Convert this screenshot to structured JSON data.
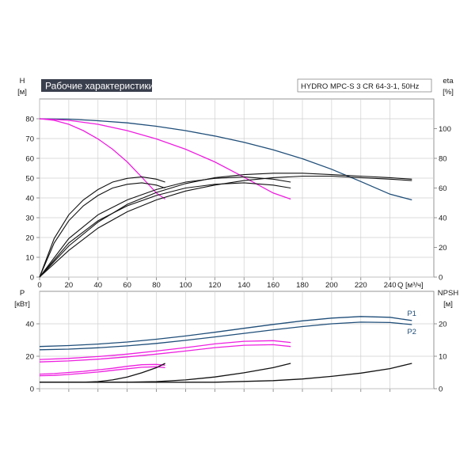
{
  "title_badge": "Рабочие характеристики",
  "model_label": "HYDRO MPC-S 3 CR 64-3-1, 50Hz",
  "colors": {
    "badge_bg": "#3a3f4d",
    "badge_text": "#ffffff",
    "grid": "#cfcfcf",
    "axis": "#7a7a7a",
    "head": "#1f4e79",
    "head_partial": "#ee1fe0",
    "eta": "#111111",
    "power": "#1f4e79",
    "power_partial": "#ee1fe0",
    "npsh": "#111111"
  },
  "chart_data": [
    {
      "type": "line",
      "panel": "top",
      "grid": true,
      "xlabel": "Q [м³/ч]",
      "xlim": [
        0,
        270
      ],
      "xticks": [
        0,
        20,
        40,
        60,
        80,
        100,
        120,
        140,
        160,
        180,
        200,
        220,
        240
      ],
      "xtick_labels": [
        "0",
        "20",
        "40",
        "60",
        "80",
        "100",
        "120",
        "140",
        "160",
        "180",
        "200",
        "220",
        "240"
      ],
      "left_axis": {
        "label_line1": "H",
        "label_line2": "[м]",
        "lim": [
          0,
          90
        ],
        "ticks": [
          0,
          10,
          20,
          30,
          40,
          50,
          60,
          70,
          80
        ],
        "tick_labels": [
          "0",
          "10",
          "20",
          "30",
          "40",
          "50",
          "60",
          "70",
          "80"
        ]
      },
      "right_axis": {
        "label_line1": "eta",
        "label_line2": "[%]",
        "lim": [
          0,
          120
        ],
        "ticks": [
          0,
          20,
          40,
          60,
          80,
          100
        ],
        "tick_labels": [
          "0",
          "20",
          "40",
          "60",
          "80",
          "100"
        ]
      },
      "series": [
        {
          "kind": "head",
          "axis": "left",
          "style": "main",
          "x": [
            0,
            20,
            40,
            60,
            80,
            100,
            120,
            140,
            160,
            180,
            200,
            220,
            240,
            255
          ],
          "y": [
            80,
            79.8,
            79,
            77.9,
            76.2,
            74,
            71.3,
            68.1,
            64.3,
            59.8,
            54.5,
            48.3,
            41.9,
            39
          ]
        },
        {
          "kind": "head",
          "axis": "left",
          "style": "partial",
          "x": [
            0,
            20,
            40,
            60,
            80,
            100,
            120,
            140,
            160,
            172
          ],
          "y": [
            80,
            79.2,
            77.2,
            74,
            69.8,
            64.6,
            58.2,
            50.5,
            42.5,
            39.4
          ]
        },
        {
          "kind": "head",
          "axis": "left",
          "style": "partial",
          "x": [
            0,
            10,
            20,
            30,
            40,
            50,
            60,
            70,
            80,
            86
          ],
          "y": [
            80,
            79.2,
            77.2,
            74,
            69.8,
            64.6,
            58.2,
            50.5,
            42.5,
            39.4
          ]
        },
        {
          "kind": "eta",
          "axis": "right",
          "style": "main",
          "x": [
            0,
            20,
            40,
            60,
            80,
            100,
            120,
            140,
            160,
            180,
            200,
            220,
            240,
            255
          ],
          "y": [
            0,
            18,
            33,
            44,
            52,
            58,
            62,
            65,
            67,
            68,
            68,
            67,
            66,
            65
          ]
        },
        {
          "kind": "eta",
          "axis": "right",
          "style": "main",
          "x": [
            0,
            20,
            40,
            60,
            80,
            100,
            120,
            140,
            160,
            180,
            200,
            220,
            240,
            255
          ],
          "y": [
            0,
            21,
            37,
            49,
            57,
            63,
            67,
            69,
            70,
            70,
            69,
            68,
            67,
            66
          ]
        },
        {
          "kind": "eta",
          "axis": "right",
          "style": "main",
          "x": [
            0,
            20,
            40,
            60,
            80,
            100,
            120,
            140,
            160,
            172
          ],
          "y": [
            0,
            23,
            38,
            48,
            55,
            60,
            62.5,
            63.5,
            62,
            60
          ]
        },
        {
          "kind": "eta",
          "axis": "right",
          "style": "main",
          "x": [
            0,
            20,
            40,
            60,
            80,
            100,
            120,
            140,
            160,
            172
          ],
          "y": [
            0,
            26,
            42,
            52,
            59,
            64,
            66.5,
            67.5,
            66,
            64
          ]
        },
        {
          "kind": "eta",
          "axis": "right",
          "style": "main",
          "x": [
            0,
            10,
            20,
            30,
            40,
            50,
            60,
            70,
            80,
            86
          ],
          "y": [
            0,
            23,
            38,
            48,
            55,
            60,
            62.5,
            63.5,
            62,
            60
          ]
        },
        {
          "kind": "eta",
          "axis": "right",
          "style": "main",
          "x": [
            0,
            10,
            20,
            30,
            40,
            50,
            60,
            70,
            80,
            86
          ],
          "y": [
            0,
            26,
            42,
            52,
            59,
            64,
            66.5,
            67.5,
            66,
            64
          ]
        }
      ]
    },
    {
      "type": "line",
      "panel": "bottom",
      "grid": true,
      "xlim": [
        0,
        270
      ],
      "xticks": [
        0,
        20,
        40,
        60,
        80,
        100,
        120,
        140,
        160,
        180,
        200,
        220,
        240
      ],
      "left_axis": {
        "label_line1": "P",
        "label_line2": "[кВт]",
        "lim": [
          0,
          60
        ],
        "ticks": [
          0,
          20,
          40
        ],
        "tick_labels": [
          "0",
          "20",
          "40"
        ]
      },
      "right_axis": {
        "label_line1": "NPSH",
        "label_line2": "[м]",
        "lim": [
          0,
          30
        ],
        "ticks": [
          0,
          10,
          20
        ],
        "tick_labels": [
          "0",
          "10",
          "20"
        ]
      },
      "series": [
        {
          "kind": "power",
          "axis": "left",
          "style": "main",
          "name": "P1",
          "x": [
            0,
            20,
            40,
            60,
            80,
            100,
            120,
            140,
            160,
            180,
            200,
            220,
            240,
            255
          ],
          "y": [
            26,
            26.6,
            27.5,
            28.8,
            30.5,
            32.5,
            34.8,
            37.2,
            39.6,
            41.8,
            43.5,
            44.5,
            44,
            42
          ]
        },
        {
          "kind": "power",
          "axis": "left",
          "style": "main",
          "name": "P2",
          "x": [
            0,
            20,
            40,
            60,
            80,
            100,
            120,
            140,
            160,
            180,
            200,
            220,
            240,
            255
          ],
          "y": [
            24,
            24.4,
            25.2,
            26.4,
            27.9,
            29.8,
            31.9,
            34.1,
            36.3,
            38.3,
            40,
            41,
            40.8,
            39.5
          ]
        },
        {
          "kind": "power",
          "axis": "left",
          "style": "partial",
          "x": [
            0,
            20,
            40,
            60,
            80,
            100,
            120,
            140,
            160,
            172
          ],
          "y": [
            18,
            18.7,
            19.8,
            21.3,
            23.2,
            25.3,
            27.6,
            29.2,
            29.6,
            28.5
          ]
        },
        {
          "kind": "power",
          "axis": "left",
          "style": "partial",
          "x": [
            0,
            20,
            40,
            60,
            80,
            100,
            120,
            140,
            160,
            172
          ],
          "y": [
            16.5,
            17.1,
            18.2,
            19.6,
            21.3,
            23.2,
            25.3,
            26.8,
            27.1,
            26
          ]
        },
        {
          "kind": "power",
          "axis": "left",
          "style": "partial",
          "x": [
            0,
            10,
            20,
            30,
            40,
            50,
            60,
            70,
            80,
            86
          ],
          "y": [
            9,
            9.3,
            10,
            10.7,
            11.6,
            12.6,
            13.8,
            14.8,
            15,
            14.5
          ]
        },
        {
          "kind": "power",
          "axis": "left",
          "style": "partial",
          "x": [
            0,
            10,
            20,
            30,
            40,
            50,
            60,
            70,
            80,
            86
          ],
          "y": [
            8,
            8.2,
            8.8,
            9.5,
            10.3,
            11.3,
            12.3,
            13.2,
            13.5,
            13
          ]
        },
        {
          "kind": "npsh",
          "axis": "right",
          "style": "main",
          "x": [
            0,
            40,
            80,
            120,
            160,
            180,
            200,
            220,
            240,
            255
          ],
          "y": [
            2,
            2,
            2,
            2,
            2.5,
            3,
            3.8,
            4.8,
            6.2,
            7.8
          ]
        },
        {
          "kind": "npsh",
          "axis": "right",
          "style": "main",
          "x": [
            0,
            60,
            80,
            100,
            120,
            140,
            160,
            172
          ],
          "y": [
            2,
            2,
            2.2,
            2.7,
            3.6,
            4.9,
            6.5,
            7.8
          ]
        },
        {
          "kind": "npsh",
          "axis": "right",
          "style": "main",
          "x": [
            0,
            30,
            40,
            50,
            60,
            70,
            80,
            86
          ],
          "y": [
            2,
            2,
            2.2,
            2.7,
            3.6,
            4.9,
            6.5,
            7.8
          ]
        }
      ]
    }
  ]
}
